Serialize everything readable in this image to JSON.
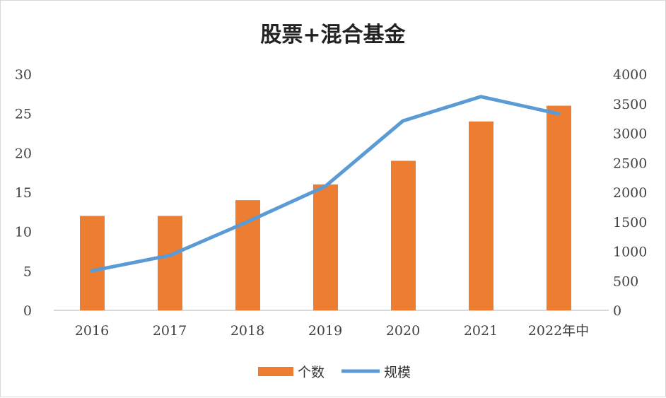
{
  "chart_data": {
    "type": "bar+line",
    "title": "股票+混合基金",
    "categories": [
      "2016",
      "2017",
      "2018",
      "2019",
      "2020",
      "2021",
      "2022年中"
    ],
    "series": [
      {
        "name": "个数",
        "type": "bar",
        "axis": "left",
        "color": "#ED7D31",
        "values": [
          12,
          12,
          14,
          16,
          19,
          24,
          26
        ]
      },
      {
        "name": "规模",
        "type": "line",
        "axis": "right",
        "color": "#5B9BD5",
        "values": [
          670,
          930,
          1500,
          2100,
          3210,
          3620,
          3330
        ]
      }
    ],
    "y_left": {
      "range": [
        0,
        30
      ],
      "ticks": [
        0,
        5,
        10,
        15,
        20,
        25,
        30
      ]
    },
    "y_right": {
      "range": [
        0,
        4000
      ],
      "ticks": [
        0,
        500,
        1000,
        1500,
        2000,
        2500,
        3000,
        3500,
        4000
      ]
    },
    "grid": false,
    "legend": "bottom"
  }
}
